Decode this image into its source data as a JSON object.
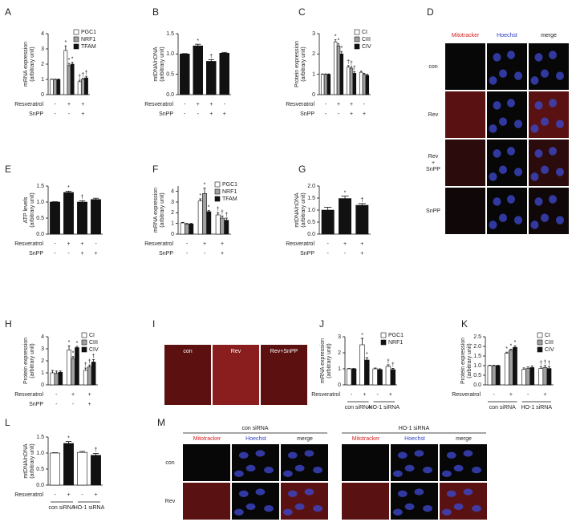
{
  "chart_data": [
    {
      "type": "bar",
      "panel": "A",
      "ylabel": [
        "mRNA expression",
        "(arbitrary unit)"
      ],
      "ylim": [
        0,
        4
      ],
      "yticks": [
        0,
        1,
        2,
        3,
        4
      ],
      "series": [
        {
          "name": "PGC1",
          "color": "#ffffff",
          "values": [
            1,
            2.9,
            0.85
          ],
          "errors": [
            0.02,
            0.3,
            0.1
          ],
          "significance": [
            null,
            "*",
            "†"
          ]
        },
        {
          "name": "NRF1",
          "color": "#a0a0a0",
          "values": [
            1,
            1.9,
            1.0
          ],
          "errors": [
            0.02,
            0.15,
            0.08
          ],
          "significance": [
            null,
            "*",
            "†"
          ]
        },
        {
          "name": "TFAM",
          "color": "#111111",
          "values": [
            1,
            2.0,
            1.1
          ],
          "errors": [
            0.02,
            0.12,
            0.1
          ],
          "significance": [
            null,
            "*",
            "†"
          ]
        }
      ],
      "conditions": [
        {
          "name": "Resveratrol",
          "values": [
            "-",
            "+",
            "+"
          ]
        },
        {
          "name": "SnPP",
          "values": [
            "-",
            "-",
            "+"
          ]
        }
      ]
    },
    {
      "type": "bar",
      "panel": "B",
      "ylabel": [
        "mtDNA/nDNA",
        "(arbitrary unit)"
      ],
      "ylim": [
        0,
        1.5
      ],
      "yticks": [
        {
          "value": 0,
          "label": "0.0"
        },
        0.5,
        {
          "value": 1,
          "label": "1.0"
        },
        1.5
      ],
      "color": "#111111",
      "values": [
        1.0,
        1.2,
        0.82,
        1.02
      ],
      "errors": [
        0.01,
        0.04,
        0.04,
        0.02
      ],
      "significance": [
        null,
        "*",
        "†",
        null
      ],
      "conditions": [
        {
          "name": "Resveratrol",
          "values": [
            "-",
            "+",
            "+",
            "-"
          ]
        },
        {
          "name": "SnPP",
          "values": [
            "-",
            "-",
            "+",
            "+"
          ]
        }
      ]
    },
    {
      "type": "bar",
      "panel": "C",
      "ylabel": [
        "Protein expression",
        "(arbitrary unit)"
      ],
      "ylim": [
        0,
        3
      ],
      "yticks": [
        0,
        1,
        2,
        3
      ],
      "series": [
        {
          "name": "CI",
          "color": "#ffffff",
          "values": [
            1,
            2.6,
            1.35,
            1.1
          ],
          "errors": [
            0.02,
            0.1,
            0.08,
            0.05
          ],
          "significance": [
            null,
            "*",
            "†",
            null
          ]
        },
        {
          "name": "CIII",
          "color": "#a0a0a0",
          "values": [
            1,
            2.4,
            1.3,
            1.0
          ],
          "errors": [
            0.02,
            0.1,
            0.08,
            0.05
          ],
          "significance": [
            null,
            "*",
            "†",
            null
          ]
        },
        {
          "name": "CIV",
          "color": "#111111",
          "values": [
            1,
            2.0,
            1.05,
            0.95
          ],
          "errors": [
            0.02,
            0.12,
            0.08,
            0.05
          ],
          "significance": [
            null,
            "*",
            "†",
            null
          ]
        }
      ],
      "conditions": [
        {
          "name": "Resveratrol",
          "values": [
            "-",
            "+",
            "+",
            "-"
          ]
        },
        {
          "name": "SnPP",
          "values": [
            "-",
            "-",
            "+",
            "+"
          ]
        }
      ]
    },
    {
      "type": "bar",
      "panel": "E",
      "ylabel": [
        "ATP levels",
        "(arbitrary unit)"
      ],
      "ylim": [
        0,
        1.5
      ],
      "yticks": [
        {
          "value": 0,
          "label": "0.0"
        },
        0.5,
        {
          "value": 1,
          "label": "1.0"
        },
        1.5
      ],
      "color": "#111111",
      "values": [
        1.0,
        1.3,
        1.0,
        1.08
      ],
      "errors": [
        0.01,
        0.04,
        0.04,
        0.04
      ],
      "significance": [
        null,
        "*",
        "†",
        null
      ],
      "conditions": [
        {
          "name": "Resveratrol",
          "values": [
            "-",
            "+",
            "+",
            "-"
          ]
        },
        {
          "name": "SnPP",
          "values": [
            "-",
            "-",
            "+",
            "+"
          ]
        }
      ]
    },
    {
      "type": "bar",
      "panel": "F",
      "ylabel": [
        "mRNA expression",
        "(arbitrary unit)"
      ],
      "ylim": [
        0,
        4.5
      ],
      "yticks": [
        0,
        1,
        2,
        3,
        4
      ],
      "series": [
        {
          "name": "PGC1",
          "color": "#ffffff",
          "values": [
            1.05,
            3.1,
            1.8
          ],
          "errors": [
            0.05,
            0.2,
            0.2
          ],
          "significance": [
            null,
            "*",
            "†"
          ]
        },
        {
          "name": "NRF1",
          "color": "#a0a0a0",
          "values": [
            0.95,
            3.8,
            1.5
          ],
          "errors": [
            0.05,
            0.5,
            0.2
          ],
          "significance": [
            null,
            "*",
            "†"
          ]
        },
        {
          "name": "TFAM",
          "color": "#111111",
          "values": [
            0.95,
            2.1,
            1.3
          ],
          "errors": [
            0.05,
            0.1,
            0.2
          ],
          "significance": [
            null,
            "*",
            "†"
          ]
        }
      ],
      "conditions": [
        {
          "name": "Resveratrol",
          "values": [
            "-",
            "+",
            "+"
          ]
        },
        {
          "name": "SnPP",
          "values": [
            "-",
            "-",
            "+"
          ]
        }
      ]
    },
    {
      "type": "bar",
      "panel": "G",
      "ylabel": [
        "mtDNA/nDNA",
        "(arbitrary unit)"
      ],
      "ylim": [
        0,
        2
      ],
      "yticks": [
        {
          "value": 0,
          "label": "0.0"
        },
        0.5,
        {
          "value": 1,
          "label": "1.0"
        },
        1.5,
        {
          "value": 2,
          "label": "2.0"
        }
      ],
      "color": "#111111",
      "values": [
        1.0,
        1.48,
        1.2
      ],
      "errors": [
        0.12,
        0.1,
        0.07
      ],
      "significance": [
        null,
        "*",
        "†"
      ],
      "conditions": [
        {
          "name": "Resveratrol",
          "values": [
            "-",
            "+",
            "+"
          ]
        },
        {
          "name": "SnPP",
          "values": [
            "-",
            "-",
            "+"
          ]
        }
      ]
    },
    {
      "type": "bar",
      "panel": "H",
      "ylabel": [
        "Protein expression",
        "(arbitrary unit)"
      ],
      "ylim": [
        0,
        4
      ],
      "yticks": [
        0,
        1,
        2,
        3,
        4
      ],
      "series": [
        {
          "name": "CI",
          "color": "#ffffff",
          "values": [
            1.0,
            2.9,
            1.2
          ],
          "errors": [
            0.2,
            0.35,
            0.2
          ],
          "significance": [
            null,
            "*",
            "†"
          ]
        },
        {
          "name": "CIII",
          "color": "#a0a0a0",
          "values": [
            0.95,
            2.2,
            1.5
          ],
          "errors": [
            0.2,
            0.15,
            0.15
          ],
          "significance": [
            null,
            "*",
            "†"
          ]
        },
        {
          "name": "CIV",
          "color": "#111111",
          "values": [
            1.05,
            3.1,
            1.9
          ],
          "errors": [
            0.1,
            0.1,
            0.2
          ],
          "significance": [
            null,
            "*",
            "†"
          ]
        }
      ],
      "conditions": [
        {
          "name": "Resveratrol",
          "values": [
            "-",
            "+",
            "+"
          ]
        },
        {
          "name": "SnPP",
          "values": [
            "-",
            "-",
            "+"
          ]
        }
      ]
    },
    {
      "type": "bar",
      "panel": "J",
      "ylabel": [
        "mRNA expression",
        "(arbitrary unit)"
      ],
      "ylim": [
        0,
        3
      ],
      "yticks": [
        0,
        1,
        2,
        3
      ],
      "series": [
        {
          "name": "PGC1",
          "color": "#ffffff",
          "values": [
            1.0,
            2.5,
            1.0,
            1.15
          ],
          "errors": [
            0.02,
            0.4,
            0.05,
            0.1
          ],
          "significance": [
            null,
            "*",
            null,
            "†"
          ]
        },
        {
          "name": "NRF1",
          "color": "#111111",
          "values": [
            1.0,
            1.55,
            0.95,
            0.95
          ],
          "errors": [
            0.02,
            0.15,
            0.05,
            0.08
          ],
          "significance": [
            null,
            "*",
            null,
            "†"
          ]
        }
      ],
      "conditions": [
        {
          "name": "Resveratrol",
          "values": [
            "-",
            "+",
            "-",
            "+"
          ]
        }
      ],
      "groups": [
        "con siRNA",
        "HO-1 siRNA"
      ]
    },
    {
      "type": "bar",
      "panel": "K",
      "ylabel": [
        "Protein expression",
        "(arbitrary unit)"
      ],
      "ylim": [
        0,
        2.5
      ],
      "yticks": [
        {
          "value": 0,
          "label": "0.0"
        },
        0.5,
        {
          "value": 1,
          "label": "1.0"
        },
        1.5,
        {
          "value": 2,
          "label": "2.0"
        },
        2.5
      ],
      "series": [
        {
          "name": "CI",
          "color": "#ffffff",
          "values": [
            1,
            1.65,
            0.8,
            0.85
          ],
          "errors": [
            0.02,
            0.05,
            0.08,
            0.1
          ],
          "significance": [
            null,
            "*",
            null,
            "†"
          ]
        },
        {
          "name": "CIII",
          "color": "#a0a0a0",
          "values": [
            1,
            1.8,
            0.85,
            0.9
          ],
          "errors": [
            0.02,
            0.05,
            0.08,
            0.1
          ],
          "significance": [
            null,
            "*",
            null,
            "†"
          ]
        },
        {
          "name": "CIV",
          "color": "#111111",
          "values": [
            1,
            1.95,
            0.9,
            0.85
          ],
          "errors": [
            0.02,
            0.08,
            0.08,
            0.1
          ],
          "significance": [
            null,
            "*",
            null,
            "†"
          ]
        }
      ],
      "conditions": [
        {
          "name": "Resveratrol",
          "values": [
            "-",
            "+",
            "-",
            "+"
          ]
        }
      ],
      "groups": [
        "con siRNA",
        "HO-1 siRNA"
      ]
    },
    {
      "type": "bar",
      "panel": "L",
      "ylabel": [
        "mtDNA/nDNA",
        "(arbitrary unit)"
      ],
      "ylim": [
        0,
        1.5
      ],
      "yticks": [
        {
          "value": 0,
          "label": "0.0"
        },
        0.5,
        {
          "value": 1,
          "label": "1.0"
        },
        1.5
      ],
      "colors": [
        "#ffffff",
        "#111111",
        "#ffffff",
        "#111111"
      ],
      "values": [
        1.0,
        1.3,
        1.02,
        0.93
      ],
      "errors": [
        0.01,
        0.06,
        0.03,
        0.06
      ],
      "significance": [
        null,
        "*",
        null,
        "†"
      ],
      "conditions": [
        {
          "name": "Resveratrol",
          "values": [
            "-",
            "+",
            "-",
            "+"
          ]
        }
      ],
      "groups": [
        "con siRNA",
        "HO-1 siRNA"
      ]
    }
  ],
  "micrographs": [
    {
      "panel": "D",
      "columns": [
        "Mitotracker",
        "Hoechst",
        "merge"
      ],
      "rows": [
        [
          "con"
        ],
        [
          "Rev"
        ],
        [
          "Rev",
          "+",
          "SnPP"
        ],
        [
          "SnPP"
        ]
      ]
    },
    {
      "panel": "I",
      "columns": [
        "con",
        "Rev",
        "Rev+SnPP"
      ]
    },
    {
      "panel": "M",
      "groups": [
        "con siRNA",
        "HO-1 siRNA"
      ],
      "columns": [
        "Mitotracker",
        "Hoechst",
        "merge"
      ],
      "rows": [
        [
          "con"
        ],
        [
          "Rev"
        ]
      ]
    }
  ]
}
